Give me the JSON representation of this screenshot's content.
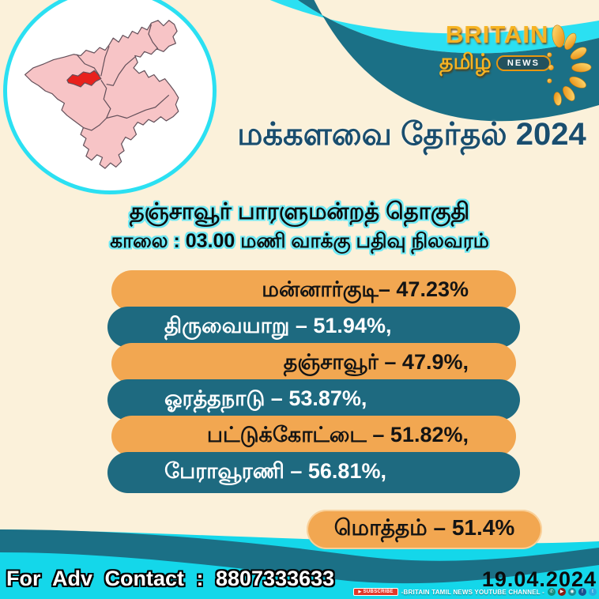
{
  "logo": {
    "brand": "BRITAIN",
    "lang": "தமிழ்",
    "news_badge": "NEWS",
    "ornament_icon": "gold-peacock-flourish"
  },
  "header": {
    "title": "மக்களவை தேர்தல் 2024"
  },
  "intro": {
    "constituency": "தஞ்சாவூர் பாரளுமன்றத் தொகுதி",
    "status_line": "காலை : 03.00 மணி வாக்கு பதிவு நிலவரம்"
  },
  "chart_data": {
    "type": "table",
    "title": "மக்களவை தேர்தல் 2024",
    "subtitle": "தஞ்சாவூர் பாரளுமன்றத் தொகுதி — காலை : 03.00 மணி வாக்கு பதிவு நிலவரம்",
    "unit": "percent votes polled",
    "categories": [
      "மன்னார்குடி",
      "திருவையாறு",
      "தஞ்சாவூர்",
      "ஓரத்தநாடு",
      "பட்டுக்கோட்டை",
      "பேராவூரணி"
    ],
    "values": [
      47.23,
      51.94,
      47.9,
      53.87,
      51.82,
      56.81
    ],
    "total": {
      "label": "மொத்தம்",
      "value": 51.4
    },
    "rows": [
      {
        "display": "மன்னார்குடி– 47.23%",
        "style": "orange"
      },
      {
        "display": "திருவையாறு – 51.94%,",
        "style": "teal"
      },
      {
        "display": "தஞ்சாவூர் – 47.9%,",
        "style": "orange"
      },
      {
        "display": "ஓரத்தநாடு – 53.87%,",
        "style": "teal"
      },
      {
        "display": "பட்டுக்கோட்டை – 51.82%,",
        "style": "orange"
      },
      {
        "display": "பேராவூரணி – 56.81%,",
        "style": "teal"
      }
    ],
    "total_display": "மொத்தம் – 51.4%"
  },
  "map": {
    "name": "thanjavur-district-map",
    "fill_color": "#F7C4C6",
    "highlight_color": "#E8211D"
  },
  "footer": {
    "contact": "For Adv Contact : 8807333633",
    "date": "19.04.2024",
    "subscribe_label": "SUBSCRIBE",
    "channel_line": "-BRITAIN TAMIL NEWS YOUTUBE CHANNEL -",
    "social": [
      {
        "name": "whatsapp-icon",
        "color": "#128C7E",
        "glyph": "✆"
      },
      {
        "name": "youtube-icon",
        "color": "#8a1d15",
        "glyph": "▶"
      },
      {
        "name": "instagram-icon",
        "color": "#1f8a96",
        "glyph": "◉"
      },
      {
        "name": "facebook-icon",
        "color": "#1b4f8f",
        "glyph": "f"
      },
      {
        "name": "twitter-icon",
        "color": "#2aa9e0",
        "glyph": "t"
      }
    ]
  },
  "colors": {
    "background": "#FBF1DA",
    "accent_cyan": "#2BE0F2",
    "deep_teal": "#1B7086",
    "row_orange": "#F2A751",
    "row_teal": "#1E6A80",
    "title_text": "#1A4E6E",
    "bottom_cyan": "#14D7EA",
    "subscribe_red": "#E2382A",
    "logo_gold": "#F6B322"
  }
}
